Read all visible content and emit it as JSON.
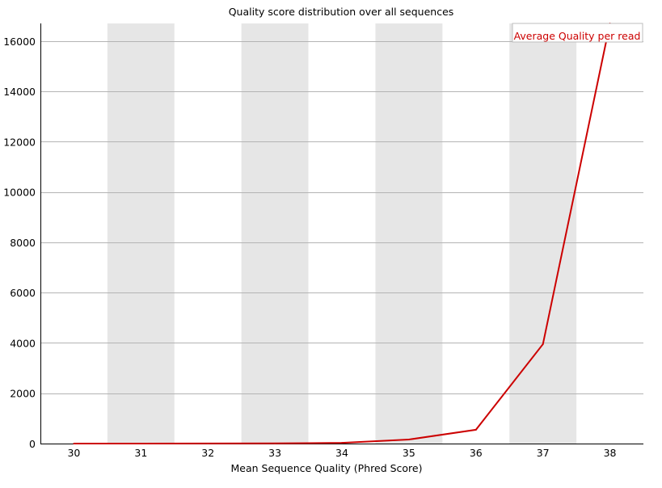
{
  "chart_data": {
    "type": "line",
    "title": "Quality score distribution over all sequences",
    "xlabel": "Mean Sequence Quality (Phred Score)",
    "ylabel": "",
    "categories": [
      30,
      31,
      32,
      33,
      34,
      35,
      36,
      37,
      38
    ],
    "series": [
      {
        "name": "Average Quality per read",
        "values": [
          1,
          1,
          2,
          5,
          30,
          160,
          550,
          3950,
          16700
        ],
        "color": "#cc0000"
      }
    ],
    "ylim": [
      0,
      16700
    ],
    "yticks": [
      0,
      2000,
      4000,
      6000,
      8000,
      10000,
      12000,
      14000,
      16000
    ],
    "grid": "horizontal",
    "alternating_bands": true,
    "band_color": "#e6e6e6",
    "grid_color": "#b4b4b4",
    "legend": "top-right"
  }
}
